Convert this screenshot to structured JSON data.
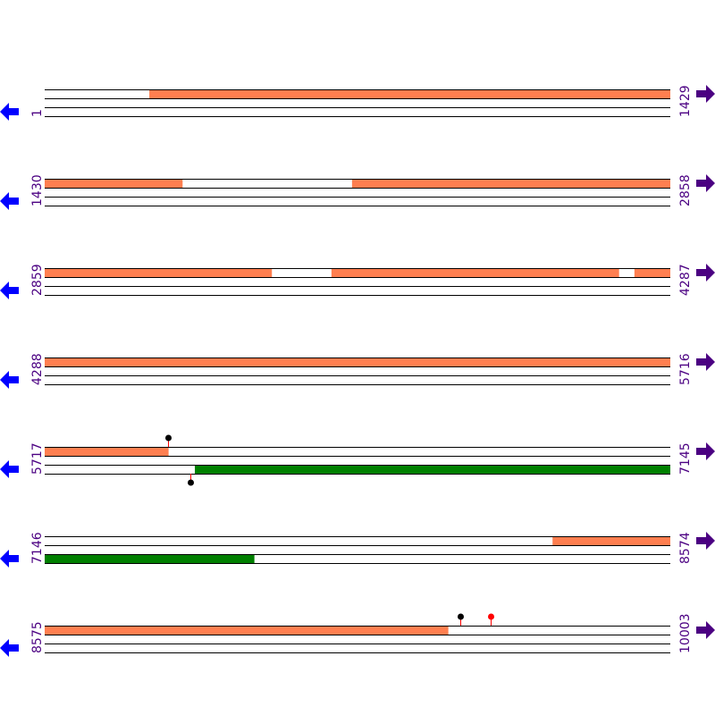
{
  "colors": {
    "forward_feature": "#ff7f50",
    "reverse_feature": "#008000",
    "line": "#000000",
    "left_arrow": "#0000ff",
    "right_arrow": "#4b0082",
    "label": "#4b0082",
    "marker_black": "#000000",
    "marker_red": "#ff0000",
    "marker_stem": "#ff0000"
  },
  "rows": [
    {
      "start_label": "1",
      "end_label": "1429",
      "start": 1,
      "end": 1429
    },
    {
      "start_label": "1430",
      "end_label": "2858",
      "start": 1430,
      "end": 2858
    },
    {
      "start_label": "2859",
      "end_label": "4287",
      "start": 2859,
      "end": 4287
    },
    {
      "start_label": "4288",
      "end_label": "5716",
      "start": 4288,
      "end": 5716
    },
    {
      "start_label": "5717",
      "end_label": "7145",
      "start": 5717,
      "end": 7145
    },
    {
      "start_label": "7146",
      "end_label": "8574",
      "start": 7146,
      "end": 8574
    },
    {
      "start_label": "8575",
      "end_label": "10003",
      "start": 8575,
      "end": 10003
    }
  ],
  "features": [
    {
      "strand": "forward",
      "start": 240,
      "end": 1429
    },
    {
      "strand": "forward",
      "start": 1430,
      "end": 1744
    },
    {
      "strand": "forward",
      "start": 2132,
      "end": 2858
    },
    {
      "strand": "forward",
      "start": 2859,
      "end": 3377
    },
    {
      "strand": "forward",
      "start": 3514,
      "end": 4170
    },
    {
      "strand": "forward",
      "start": 4206,
      "end": 4287
    },
    {
      "strand": "forward",
      "start": 4288,
      "end": 5716
    },
    {
      "strand": "forward",
      "start": 5717,
      "end": 5999
    },
    {
      "strand": "reverse",
      "start": 6060,
      "end": 7624
    },
    {
      "strand": "forward",
      "start": 8306,
      "end": 8574
    },
    {
      "strand": "forward",
      "start": 8575,
      "end": 9496
    }
  ],
  "markers": [
    {
      "strand": "forward",
      "position": 5999,
      "color": "black"
    },
    {
      "strand": "reverse",
      "position": 6050,
      "color": "black"
    },
    {
      "strand": "forward",
      "position": 9524,
      "color": "black"
    },
    {
      "strand": "forward",
      "position": 9594,
      "color": "red"
    }
  ],
  "icons": {
    "left": "arrow-left-icon",
    "right": "arrow-right-icon"
  }
}
